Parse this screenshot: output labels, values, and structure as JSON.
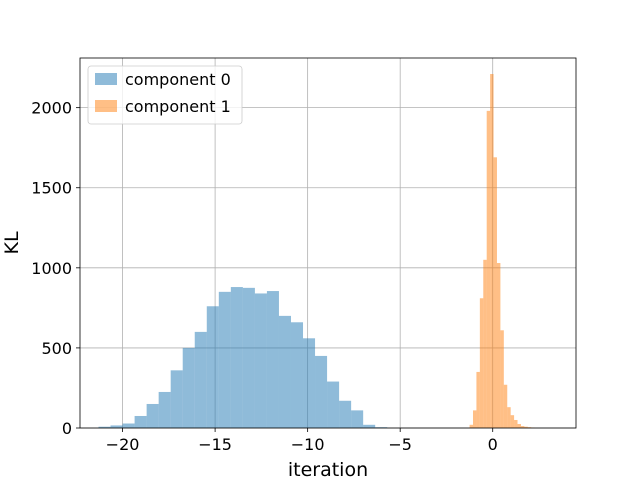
{
  "chart_data": {
    "type": "histogram",
    "xlabel": "iteration",
    "ylabel": "KL",
    "xlim": [
      -22.3,
      4.5
    ],
    "ylim": [
      0,
      2310
    ],
    "xticks": [
      -20,
      -15,
      -10,
      -5,
      0
    ],
    "yticks": [
      0,
      500,
      1000,
      1500,
      2000
    ],
    "xtick_labels": [
      "−20",
      "−15",
      "−10",
      "−5",
      "0"
    ],
    "ytick_labels": [
      "0",
      "500",
      "1000",
      "1500",
      "2000"
    ],
    "grid": true,
    "legend": {
      "placement": "top-left",
      "entries": [
        "component 0",
        "component 1"
      ]
    },
    "series": [
      {
        "name": "component 0",
        "color": "#1f77b4",
        "alpha": 0.5,
        "bin_start": -21.3,
        "bin_width": 0.65,
        "counts": [
          8,
          16,
          28,
          75,
          150,
          225,
          360,
          500,
          600,
          760,
          850,
          880,
          875,
          840,
          855,
          700,
          660,
          560,
          450,
          290,
          170,
          110,
          20,
          5
        ]
      },
      {
        "name": "component 1",
        "color": "#ff7f0e",
        "alpha": 0.5,
        "bin_start": -1.25,
        "bin_width": 0.185,
        "counts": [
          20,
          110,
          350,
          810,
          1050,
          1980,
          2210,
          1690,
          1030,
          610,
          270,
          130,
          80,
          50,
          25,
          12,
          8,
          5,
          3
        ]
      }
    ]
  }
}
